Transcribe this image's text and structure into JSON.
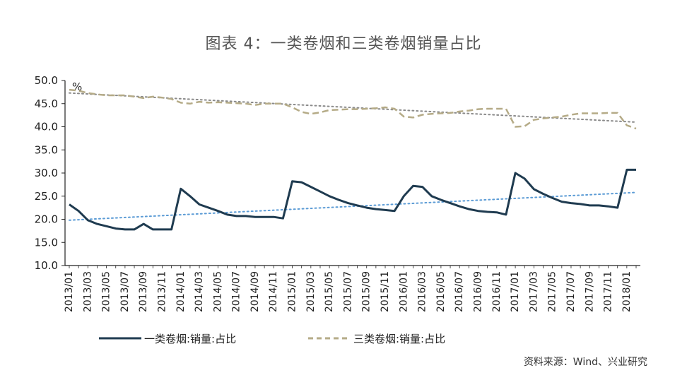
{
  "title": "图表 4：一类卷烟和三类卷烟销量占比",
  "source": "资料来源：Wind、兴业研究",
  "colors": {
    "series1": "#1f3b50",
    "series2": "#b5ab87",
    "trend1": "#5b9bd5",
    "trend2": "#8a8a8a"
  },
  "chart_data": {
    "type": "line",
    "ylabel": "%",
    "ylim": [
      10,
      50
    ],
    "yticks": [
      "50.0",
      "45.0",
      "40.0",
      "35.0",
      "30.0",
      "25.0",
      "20.0",
      "15.0",
      "10.0"
    ],
    "grid": false,
    "legend_position": "bottom",
    "xtick_labels": [
      "2013/01",
      "2013/03",
      "2013/05",
      "2013/07",
      "2013/09",
      "2013/11",
      "2014/01",
      "2014/03",
      "2014/05",
      "2014/07",
      "2014/09",
      "2014/11",
      "2015/01",
      "2015/03",
      "2015/05",
      "2015/07",
      "2015/09",
      "2015/11",
      "2016/01",
      "2016/03",
      "2016/05",
      "2016/07",
      "2016/09",
      "2016/11",
      "2017/01",
      "2017/03",
      "2017/05",
      "2017/07",
      "2017/09",
      "2017/11",
      "2018/01"
    ],
    "x": [
      "2013/01",
      "2013/02",
      "2013/03",
      "2013/04",
      "2013/05",
      "2013/06",
      "2013/07",
      "2013/08",
      "2013/09",
      "2013/10",
      "2013/11",
      "2013/12",
      "2014/01",
      "2014/02",
      "2014/03",
      "2014/04",
      "2014/05",
      "2014/06",
      "2014/07",
      "2014/08",
      "2014/09",
      "2014/10",
      "2014/11",
      "2014/12",
      "2015/01",
      "2015/02",
      "2015/03",
      "2015/04",
      "2015/05",
      "2015/06",
      "2015/07",
      "2015/08",
      "2015/09",
      "2015/10",
      "2015/11",
      "2015/12",
      "2016/01",
      "2016/02",
      "2016/03",
      "2016/04",
      "2016/05",
      "2016/06",
      "2016/07",
      "2016/08",
      "2016/09",
      "2016/10",
      "2016/11",
      "2016/12",
      "2017/01",
      "2017/02",
      "2017/03",
      "2017/04",
      "2017/05",
      "2017/06",
      "2017/07",
      "2017/08",
      "2017/09",
      "2017/10",
      "2017/11",
      "2017/12",
      "2018/01",
      "2018/02"
    ],
    "series": [
      {
        "name": "一类卷烟:销量:占比",
        "style": "solid",
        "values": [
          23.2,
          21.8,
          19.8,
          19.0,
          18.5,
          18.0,
          17.8,
          17.8,
          19.0,
          17.8,
          17.8,
          17.8,
          26.6,
          25.0,
          23.2,
          22.5,
          21.8,
          21.0,
          20.7,
          20.7,
          20.5,
          20.5,
          20.5,
          20.2,
          28.2,
          28.0,
          27.0,
          26.0,
          25.0,
          24.2,
          23.5,
          23.0,
          22.5,
          22.2,
          22.0,
          21.8,
          25.0,
          27.2,
          27.0,
          25.0,
          24.2,
          23.5,
          22.8,
          22.2,
          21.8,
          21.6,
          21.5,
          21.0,
          30.0,
          28.8,
          26.5,
          25.5,
          24.6,
          23.8,
          23.5,
          23.3,
          23.0,
          23.0,
          22.8,
          22.5,
          30.7,
          30.7
        ]
      },
      {
        "name": "三类卷烟:销量:占比",
        "style": "dashed",
        "values": [
          48.0,
          47.8,
          47.3,
          47.0,
          46.8,
          46.8,
          46.8,
          46.5,
          46.2,
          46.5,
          46.3,
          46.0,
          45.2,
          45.0,
          45.4,
          45.2,
          45.3,
          45.2,
          45.1,
          45.0,
          44.7,
          45.0,
          45.0,
          45.0,
          44.2,
          43.2,
          42.8,
          43.1,
          43.6,
          43.7,
          43.8,
          43.8,
          43.9,
          44.0,
          44.2,
          43.9,
          42.2,
          42.0,
          42.6,
          42.8,
          42.9,
          43.0,
          43.3,
          43.5,
          43.8,
          43.9,
          43.9,
          43.9,
          40.0,
          40.1,
          41.5,
          41.8,
          42.0,
          42.2,
          42.6,
          42.9,
          42.9,
          42.9,
          43.0,
          43.0,
          40.3,
          39.6
        ]
      }
    ],
    "trendlines": [
      {
        "series": "一类卷烟:销量:占比",
        "start": 19.8,
        "end": 25.8
      },
      {
        "series": "三类卷烟:销量:占比",
        "start": 47.3,
        "end": 41.0
      }
    ]
  }
}
